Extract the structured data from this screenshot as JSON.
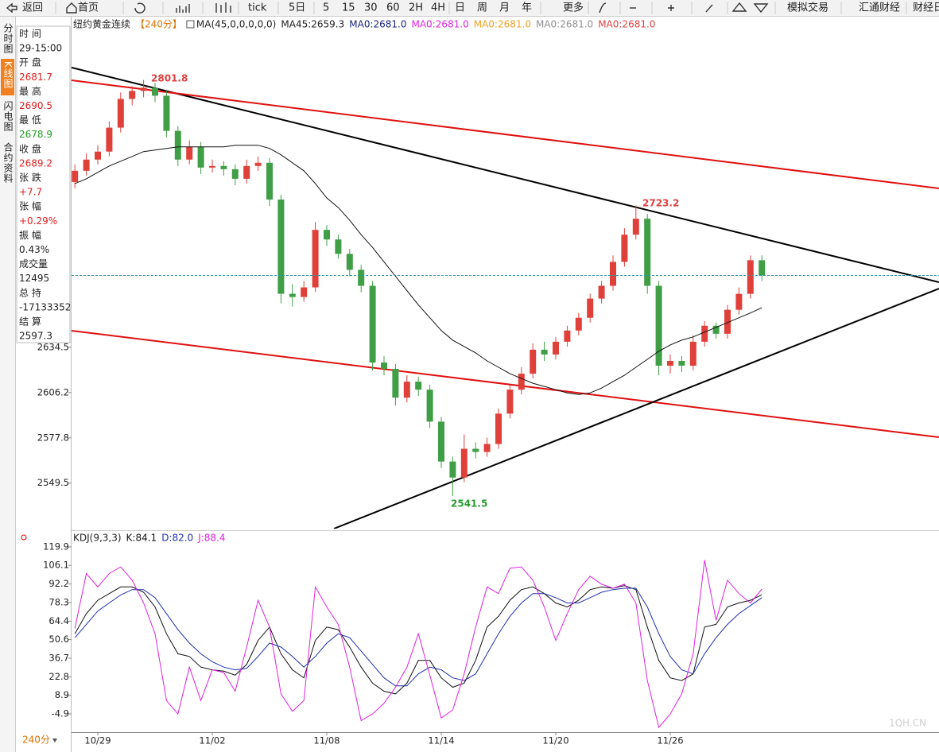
{
  "toolbar": [
    "返回",
    "首页",
    "tick",
    "5日",
    "5",
    "15",
    "30",
    "60",
    "2H",
    "4H",
    "日",
    "周",
    "月",
    "年",
    "更多",
    "模拟交易",
    "汇通财经",
    "财经日"
  ],
  "side_tabs": [
    "分时图",
    "K线图",
    "闪电图",
    "合约资料"
  ],
  "info_panel": [
    "时 间",
    "29-15:00",
    "开 盘",
    "2681.7",
    "最 高",
    "2690.5",
    "最 低",
    "2678.9",
    "收 盘",
    "2689.2",
    "张 跌",
    "+7.7",
    "张 幅",
    "+0.29%",
    "振 幅",
    "0.43%",
    "成交量",
    "12495",
    "总 持",
    "-17133352",
    "结 算",
    "2597.3"
  ],
  "period_button": "240分",
  "watermark": "1QH.CN",
  "chart_data": [
    {
      "type": "candlestick",
      "title": "纽约黄金连续",
      "period": "【240分】",
      "indicator": "MA(45,0,0,0,0,0)",
      "up_color": "#e0403a",
      "down_color": "#3f9e46",
      "open": [
        2738,
        2745,
        2752,
        2757,
        2772,
        2790,
        2795,
        2797,
        2792,
        2770,
        2752,
        2760,
        2747,
        2748,
        2746,
        2740,
        2748,
        2750,
        2727,
        2668,
        2666,
        2672,
        2708,
        2702,
        2693,
        2683,
        2673,
        2625,
        2621,
        2603,
        2613,
        2608,
        2588,
        2563,
        2553,
        2571,
        2569,
        2574,
        2593,
        2608,
        2618,
        2633,
        2630,
        2638,
        2645,
        2653,
        2665,
        2673,
        2688,
        2705,
        2715,
        2673,
        2623,
        2626,
        2623,
        2638,
        2648,
        2643,
        2658,
        2668,
        2689
      ],
      "high": [
        2749,
        2756,
        2761,
        2776,
        2794,
        2798,
        2801.8,
        2800,
        2795,
        2773,
        2764,
        2763,
        2752,
        2751,
        2749,
        2752,
        2754,
        2753,
        2730,
        2674,
        2676,
        2713,
        2711,
        2705,
        2696,
        2686,
        2676,
        2629,
        2624,
        2617,
        2616,
        2611,
        2591,
        2566,
        2580,
        2575,
        2578,
        2596,
        2611,
        2622,
        2637,
        2638,
        2641,
        2648,
        2656,
        2668,
        2676,
        2692,
        2709,
        2723.2,
        2718,
        2676,
        2630,
        2629,
        2642,
        2651,
        2650,
        2661,
        2672,
        2692,
        2692
      ],
      "low": [
        2734,
        2742,
        2749,
        2754,
        2769,
        2786,
        2791,
        2788,
        2766,
        2748,
        2749,
        2743,
        2744,
        2742,
        2736,
        2737,
        2745,
        2723,
        2662,
        2660,
        2663,
        2669,
        2698,
        2690,
        2679,
        2669,
        2620,
        2617,
        2598,
        2600,
        2604,
        2584,
        2559,
        2541.5,
        2550,
        2565,
        2566,
        2571,
        2590,
        2605,
        2615,
        2626,
        2627,
        2635,
        2642,
        2650,
        2662,
        2670,
        2685,
        2702,
        2668,
        2617,
        2618,
        2619,
        2620,
        2635,
        2640,
        2640,
        2655,
        2665,
        2676
      ],
      "close": [
        2745,
        2752,
        2757,
        2772,
        2790,
        2795,
        2797,
        2792,
        2770,
        2752,
        2760,
        2747,
        2748,
        2746,
        2740,
        2748,
        2750,
        2727,
        2668,
        2666,
        2672,
        2708,
        2702,
        2693,
        2683,
        2673,
        2625,
        2621,
        2603,
        2613,
        2608,
        2588,
        2563,
        2553,
        2571,
        2569,
        2574,
        2593,
        2608,
        2618,
        2633,
        2630,
        2638,
        2645,
        2653,
        2665,
        2673,
        2688,
        2705,
        2715,
        2673,
        2623,
        2626,
        2623,
        2638,
        2648,
        2643,
        2658,
        2668,
        2689,
        2679.5
      ],
      "ma": {
        "name": "MA45:2659.3",
        "color": "#111111",
        "values": [
          2737,
          2740,
          2744,
          2748,
          2751,
          2754,
          2757,
          2758,
          2759,
          2760,
          2760,
          2760,
          2760,
          2760,
          2761,
          2761,
          2761,
          2759,
          2755,
          2750,
          2745,
          2737,
          2728,
          2722,
          2714,
          2705,
          2697,
          2688,
          2679,
          2670,
          2661,
          2653,
          2645,
          2639,
          2635,
          2631,
          2626,
          2622,
          2618,
          2615,
          2612,
          2610,
          2608,
          2606,
          2605,
          2606,
          2609,
          2613,
          2617,
          2622,
          2627,
          2632,
          2636,
          2639,
          2641,
          2644,
          2647,
          2650,
          2653,
          2656,
          2659.3
        ]
      },
      "legend": [
        {
          "name": "MA0:2681.0",
          "color": "#1a237e"
        },
        {
          "name": "MA0:2681.0",
          "color": "#e020e0"
        },
        {
          "name": "MA0:2681.0",
          "color": "#f0a020"
        },
        {
          "name": "MA0:2681.0",
          "color": "#909090"
        },
        {
          "name": "MA0:2681.0",
          "color": "#e04040"
        }
      ],
      "annotations": [
        "2801.8",
        "2723.2",
        "2541.5"
      ],
      "ylim": [
        2521,
        2832
      ],
      "yticks": [
        2549.5,
        2577.8,
        2606.2,
        2634.5
      ]
    },
    {
      "type": "line",
      "title": "KDJ(9,3,3)",
      "categories": [
        null,
        null,
        "10/29",
        null,
        null,
        null,
        null,
        null,
        null,
        null,
        null,
        null,
        "11/02",
        null,
        null,
        null,
        null,
        null,
        null,
        null,
        null,
        null,
        "11/08",
        null,
        null,
        null,
        null,
        null,
        null,
        null,
        null,
        null,
        "11/14",
        null,
        null,
        null,
        null,
        null,
        null,
        null,
        null,
        null,
        "11/20",
        null,
        null,
        null,
        null,
        null,
        null,
        null,
        null,
        null,
        "11/26",
        null,
        null,
        null,
        null,
        null,
        null,
        null,
        null
      ],
      "series": [
        {
          "name": "K:84.1",
          "color": "#111111",
          "values": [
            55,
            70,
            80,
            85,
            90,
            90,
            86,
            75,
            55,
            40,
            38,
            30,
            28,
            27,
            24,
            32,
            50,
            60,
            40,
            28,
            22,
            50,
            60,
            58,
            45,
            30,
            18,
            12,
            10,
            18,
            35,
            35,
            22,
            15,
            18,
            35,
            60,
            68,
            80,
            88,
            90,
            85,
            78,
            75,
            80,
            88,
            90,
            89,
            91,
            88,
            60,
            35,
            22,
            20,
            25,
            60,
            62,
            75,
            78,
            80,
            84.1
          ]
        },
        {
          "name": "D:82.0",
          "color": "#1f2fb0",
          "values": [
            52,
            62,
            72,
            78,
            84,
            88,
            88,
            82,
            70,
            58,
            48,
            40,
            34,
            30,
            28,
            29,
            38,
            48,
            45,
            38,
            30,
            38,
            48,
            55,
            52,
            42,
            32,
            22,
            16,
            16,
            25,
            30,
            28,
            22,
            20,
            25,
            40,
            55,
            68,
            78,
            85,
            85,
            82,
            78,
            78,
            82,
            86,
            88,
            89,
            89,
            75,
            55,
            38,
            28,
            25,
            40,
            52,
            62,
            70,
            76,
            82.0
          ]
        },
        {
          "name": "J:88.4",
          "color": "#e020e0",
          "values": [
            59,
            100,
            90,
            100,
            105,
            95,
            78,
            55,
            5,
            -5,
            30,
            5,
            28,
            26,
            12,
            45,
            80,
            60,
            10,
            -3,
            5,
            90,
            75,
            62,
            30,
            -10,
            -5,
            3,
            15,
            30,
            55,
            24,
            -8,
            -2,
            25,
            60,
            90,
            85,
            104,
            105,
            95,
            75,
            50,
            70,
            88,
            98,
            92,
            89,
            92,
            78,
            20,
            -15,
            -5,
            10,
            40,
            110,
            65,
            95,
            85,
            78,
            88.4
          ]
        }
      ],
      "ylim": [
        -18,
        129.4
      ],
      "yticks": [
        119.9,
        106.1,
        92.2,
        78.3,
        64.4,
        50.6,
        36.7,
        22.8,
        8.9,
        -4.9
      ]
    }
  ]
}
